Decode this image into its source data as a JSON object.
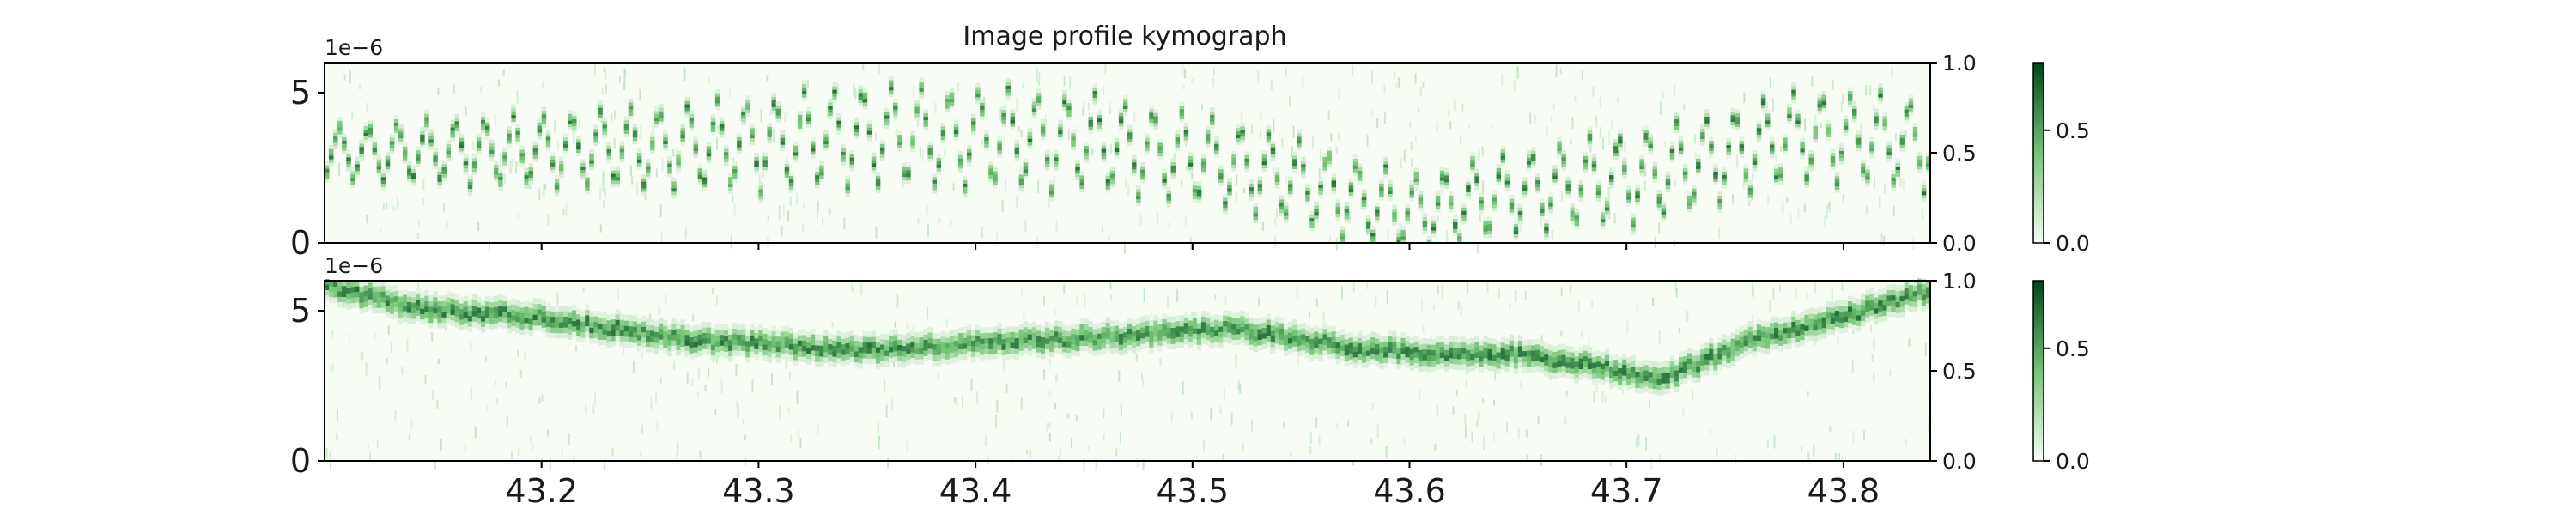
{
  "figure": {
    "title": "Image profile kymograph"
  },
  "colors": {
    "cmap_low": "#f7fcf5",
    "cmap_mid": "#74c476",
    "cmap_high": "#00441b",
    "axis": "#000000",
    "text": "#1a1a1a"
  },
  "chart_data": [
    {
      "type": "heatmap",
      "name": "kymograph-top",
      "colormap": "Greens",
      "x_ticks": [
        43.2,
        43.3,
        43.4,
        43.5,
        43.6,
        43.7,
        43.8
      ],
      "x_tick_labels": [
        "43.2",
        "43.3",
        "43.4",
        "43.5",
        "43.6",
        "43.7",
        "43.8"
      ],
      "show_x_tick_labels": false,
      "xlim": [
        43.1,
        43.84
      ],
      "y_ticks": [
        0,
        5
      ],
      "y_tick_labels": [
        "0",
        "5"
      ],
      "y_offset_text": "1e−6",
      "ylim": [
        0,
        6.0
      ],
      "right_ticks": [
        0.0,
        0.5,
        1.0
      ],
      "right_tick_labels": [
        "0.0",
        "0.5",
        "1.0"
      ],
      "colorbar": {
        "ticks": [
          0.0,
          0.5
        ],
        "tick_labels": [
          "0.0",
          "0.5"
        ],
        "range": [
          0,
          0.8
        ]
      },
      "trace": {
        "description_free": true,
        "pattern": "zigzag",
        "periods_x": 0.0134,
        "center_y": [
          [
            43.1,
            3.0
          ],
          [
            43.2,
            3.1
          ],
          [
            43.3,
            3.3
          ],
          [
            43.35,
            3.6
          ],
          [
            43.45,
            3.4
          ],
          [
            43.52,
            2.6
          ],
          [
            43.6,
            1.0
          ],
          [
            43.65,
            1.7
          ],
          [
            43.72,
            2.4
          ],
          [
            43.78,
            3.6
          ],
          [
            43.84,
            3.3
          ]
        ],
        "amplitude_y": [
          [
            43.1,
            0.9
          ],
          [
            43.35,
            1.8
          ],
          [
            43.5,
            1.6
          ],
          [
            43.6,
            1.3
          ],
          [
            43.7,
            1.6
          ],
          [
            43.84,
            1.6
          ]
        ]
      }
    },
    {
      "type": "heatmap",
      "name": "kymograph-bottom",
      "colormap": "Greens",
      "x_ticks": [
        43.2,
        43.3,
        43.4,
        43.5,
        43.6,
        43.7,
        43.8
      ],
      "x_tick_labels": [
        "43.2",
        "43.3",
        "43.4",
        "43.5",
        "43.6",
        "43.7",
        "43.8"
      ],
      "show_x_tick_labels": true,
      "xlim": [
        43.1,
        43.84
      ],
      "y_ticks": [
        0,
        5
      ],
      "y_tick_labels": [
        "0",
        "5"
      ],
      "y_offset_text": "1e−6",
      "ylim": [
        0,
        6.0
      ],
      "right_ticks": [
        0.0,
        0.5,
        1.0
      ],
      "right_tick_labels": [
        "0.0",
        "0.5",
        "1.0"
      ],
      "colorbar": {
        "ticks": [
          0.0,
          0.5
        ],
        "tick_labels": [
          "0.0",
          "0.5"
        ],
        "range": [
          0,
          0.8
        ]
      },
      "trace": {
        "pattern": "band",
        "center_y": [
          [
            43.1,
            5.8
          ],
          [
            43.15,
            5.0
          ],
          [
            43.2,
            4.8
          ],
          [
            43.27,
            4.0
          ],
          [
            43.35,
            3.7
          ],
          [
            43.45,
            4.1
          ],
          [
            43.52,
            4.4
          ],
          [
            43.58,
            3.7
          ],
          [
            43.66,
            3.5
          ],
          [
            43.715,
            2.7
          ],
          [
            43.76,
            4.1
          ],
          [
            43.8,
            4.8
          ],
          [
            43.84,
            5.7
          ]
        ],
        "band_halfwidth": 0.45
      }
    }
  ]
}
